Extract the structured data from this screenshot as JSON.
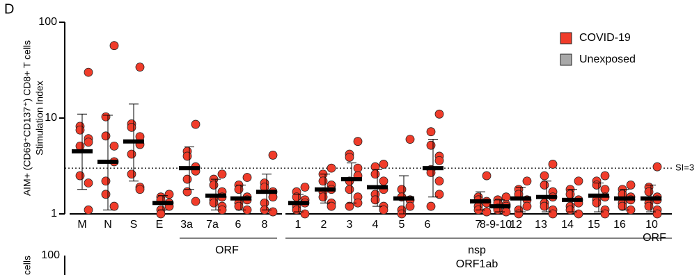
{
  "chart_data": {
    "type": "dot",
    "title": "D",
    "ylabel": "AIM+ (CD69⁺CD137⁺) CD8+ T cells",
    "ylabel2": "Stimulation Index",
    "log_scale": true,
    "ylim": [
      1,
      100
    ],
    "yticks": [
      1,
      10,
      100
    ],
    "categories": [
      "M",
      "N",
      "S",
      "E",
      "3a",
      "7a",
      "6",
      "8",
      "1",
      "2",
      "3",
      "4",
      "5",
      "6",
      "7",
      "8-9-10",
      "12",
      "13",
      "14",
      "15",
      "16",
      "10"
    ],
    "series": [
      {
        "name": "COVID-19",
        "color": "#f03c2a",
        "points": [
          [
            30,
            8.2,
            7.5,
            6.1,
            5.6,
            5.1,
            2.5,
            2.1,
            1.1
          ],
          [
            57,
            10.3,
            6.5,
            5.1,
            3.5,
            2.2,
            1.6,
            1.2
          ],
          [
            34,
            8.7,
            8,
            6.4,
            5.3,
            4.2,
            2.6,
            1.9,
            1.8
          ],
          [
            1.6,
            1.5,
            1.4,
            1.3,
            1.2,
            1.1,
            1
          ],
          [
            8.6,
            4.5,
            4,
            3.1,
            2.8,
            2.3,
            1.7,
            1.35
          ],
          [
            2.6,
            2.3,
            2,
            1.7,
            1.5,
            1.4,
            1.3,
            1.2,
            1.1
          ],
          [
            2.4,
            2,
            1.8,
            1.5,
            1.4,
            1.3,
            1.2,
            1.1
          ],
          [
            4.1,
            2.1,
            1.9,
            1.7,
            1.5,
            1.3,
            1.1,
            1.05
          ],
          [
            1.9,
            1.7,
            1.5,
            1.4,
            1.3,
            1.2,
            1.1,
            1
          ],
          [
            3,
            2.6,
            2.2,
            2,
            1.8,
            1.7,
            1.5,
            1.3,
            1.2
          ],
          [
            5.7,
            4.2,
            3.9,
            3,
            2.5,
            2.2,
            1.8,
            1.5,
            1.3,
            1.2
          ],
          [
            3.3,
            3.1,
            2.6,
            2.2,
            1.8,
            1.6,
            1.4,
            1.2,
            1.1
          ],
          [
            6,
            1.8,
            1.5,
            1.4,
            1.2,
            1.1,
            1
          ],
          [
            11,
            7.2,
            5.2,
            4,
            3.6,
            2.9,
            2.7,
            2.2,
            1.6,
            1.2
          ],
          [
            2.5,
            1.5,
            1.4,
            1.35,
            1.3,
            1.2,
            1.1,
            1.05
          ],
          [
            1.5,
            1.4,
            1.3,
            1.25,
            1.2,
            1.15,
            1.1,
            1.05
          ],
          [
            2.2,
            1.8,
            1.6,
            1.4,
            1.2,
            1.1,
            1
          ],
          [
            3.3,
            2.5,
            2,
            1.7,
            1.5,
            1.3,
            1.2,
            1.1,
            1
          ],
          [
            2.2,
            1.8,
            1.6,
            1.4,
            1.3,
            1.2,
            1.1,
            1
          ],
          [
            2.5,
            2.2,
            2,
            1.8,
            1.5,
            1.4,
            1.3,
            1.1,
            1
          ],
          [
            2,
            1.8,
            1.6,
            1.5,
            1.4,
            1.3,
            1.2,
            1.1
          ],
          [
            3.1,
            1.9,
            1.7,
            1.5,
            1.4,
            1.3,
            1.2,
            1.1,
            1
          ]
        ],
        "medians": [
          4.5,
          3.5,
          5.7,
          1.3,
          3,
          1.55,
          1.45,
          1.7,
          1.3,
          1.8,
          2.3,
          1.9,
          1.45,
          3,
          1.35,
          1.2,
          1.45,
          1.5,
          1.4,
          1.55,
          1.45,
          1.45
        ],
        "error_high": [
          11,
          10.7,
          14,
          1.55,
          5,
          2.3,
          2,
          2.6,
          1.6,
          2.6,
          3.4,
          2.9,
          2.5,
          6,
          1.7,
          1.4,
          1.9,
          2.2,
          1.8,
          2.1,
          1.8,
          2
        ],
        "error_low": [
          1.8,
          1.1,
          2.2,
          1.1,
          1.8,
          1.1,
          1.1,
          1.1,
          1.05,
          1.3,
          1.3,
          1.2,
          1,
          1.5,
          1.1,
          1.05,
          1.05,
          1.05,
          1.05,
          1.05,
          1.1,
          1.05
        ]
      },
      {
        "name": "Unexposed",
        "color": "#a9a9a9"
      }
    ],
    "reference_line": {
      "value": 3,
      "label": "SI=3"
    },
    "group_labels": [
      "ORF",
      "nsp",
      "ORF1ab",
      "ORF"
    ],
    "second_panel": {
      "ytick_label": "100",
      "ylabel_fragment": "cells"
    }
  }
}
